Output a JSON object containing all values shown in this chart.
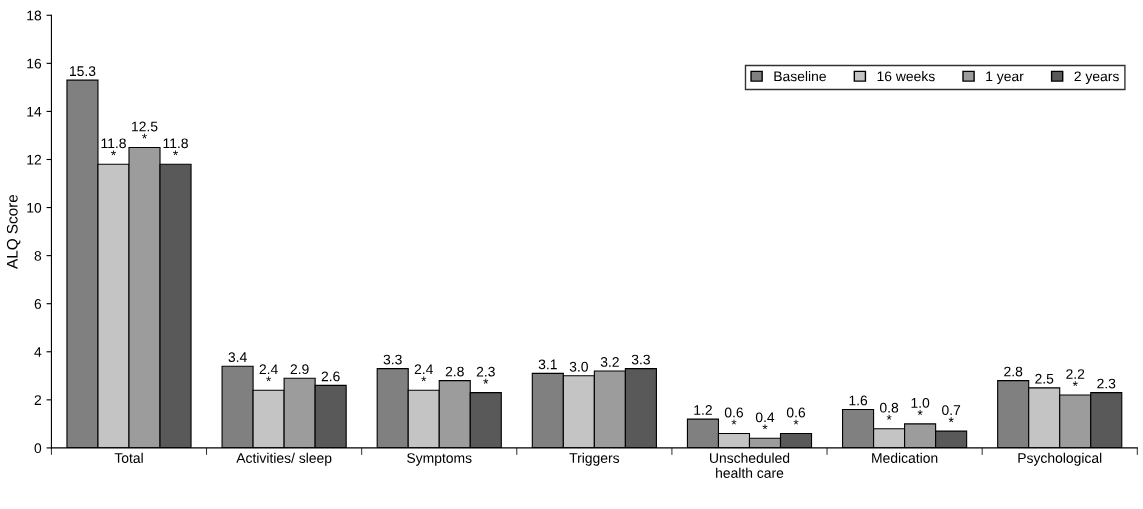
{
  "chart_data": {
    "type": "bar",
    "ylabel": "ALQ Score",
    "categories": [
      "Total",
      "Activities/ sleep",
      "Symptoms",
      "Triggers",
      "Unscheduled\nhealth care",
      "Medication",
      "Psychological"
    ],
    "series": [
      {
        "name": "Baseline",
        "color": "#808080",
        "values": [
          15.3,
          3.4,
          3.3,
          3.1,
          1.2,
          1.6,
          2.8
        ],
        "value_labels": [
          "15.3",
          "3.4",
          "3.3",
          "3.1",
          "1.2",
          "1.6",
          "2.8"
        ]
      },
      {
        "name": "16 weeks",
        "color": "#c4c4c4",
        "values": [
          11.8,
          2.4,
          2.4,
          3.0,
          0.6,
          0.8,
          2.5
        ],
        "value_labels": [
          "11.8\n*",
          "2.4\n*",
          "2.4\n*",
          "3.0",
          "0.6\n*",
          "0.8\n*",
          "2.5"
        ]
      },
      {
        "name": "1 year",
        "color": "#9c9c9c",
        "values": [
          12.5,
          2.9,
          2.8,
          3.2,
          0.4,
          1.0,
          2.2
        ],
        "value_labels": [
          "12.5\n*",
          "2.9",
          "2.8",
          "3.2",
          "0.4\n*",
          "1.0\n*",
          "2.2\n*"
        ]
      },
      {
        "name": "2 years",
        "color": "#595959",
        "values": [
          11.8,
          2.6,
          2.3,
          3.3,
          0.6,
          0.7,
          2.3
        ],
        "value_labels": [
          "11.8\n*",
          "2.6",
          "2.3\n*",
          "3.3",
          "0.6\n*",
          "0.7\n*",
          "2.3"
        ]
      }
    ],
    "ylim": [
      0,
      18
    ],
    "yticks": [
      0,
      2,
      4,
      6,
      8,
      10,
      12,
      14,
      16,
      18
    ],
    "grid": false,
    "legend": "top right"
  }
}
